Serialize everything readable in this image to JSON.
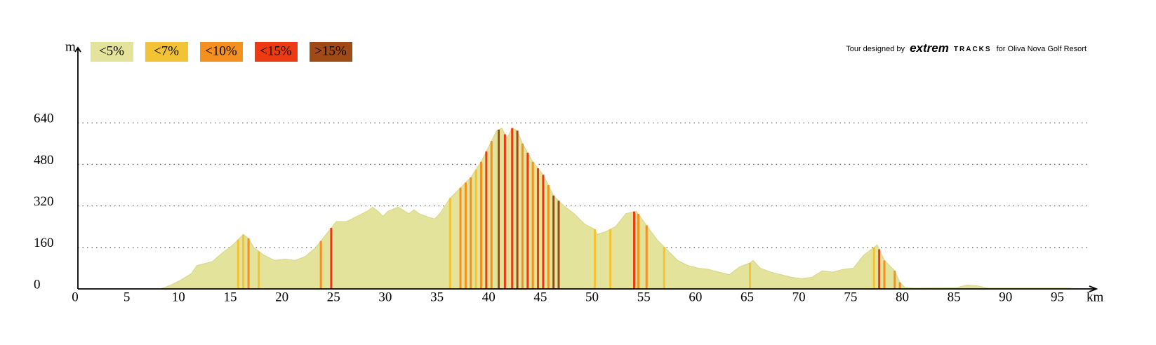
{
  "chart_data": {
    "type": "area",
    "x_label": "km",
    "y_label": "m",
    "credit": {
      "prefix": "Tour designed by",
      "brand": "extrem",
      "brand_suffix": "TRACKS",
      "suffix": "for Oliva Nova Golf Resort"
    },
    "color": "#e3e39b",
    "x": [
      0,
      5,
      8,
      9,
      10,
      11,
      11.5,
      13,
      14,
      15,
      16,
      16.5,
      17,
      18,
      19,
      20,
      21,
      22,
      23,
      24,
      25,
      26,
      27,
      28,
      28.5,
      29,
      29.5,
      30,
      31,
      32,
      32.5,
      33,
      34,
      34.5,
      35,
      36,
      37,
      38,
      39,
      40,
      40.5,
      41,
      41.5,
      42,
      42.5,
      43,
      44,
      45,
      46,
      47,
      48,
      49,
      50,
      50.2,
      51,
      52,
      53,
      54,
      55,
      56,
      57,
      58,
      59,
      60,
      61,
      62,
      63,
      64,
      65,
      65.3,
      66,
      67,
      68,
      69,
      70,
      71,
      72,
      73,
      74,
      75,
      76,
      77,
      77.3,
      78,
      79,
      79.5,
      80,
      81,
      85,
      86,
      87,
      88,
      96
    ],
    "values": [
      0,
      0,
      0,
      15,
      35,
      60,
      90,
      105,
      140,
      170,
      210,
      195,
      160,
      130,
      110,
      115,
      110,
      125,
      160,
      210,
      260,
      260,
      280,
      300,
      315,
      300,
      280,
      300,
      315,
      290,
      305,
      290,
      275,
      270,
      290,
      350,
      390,
      430,
      490,
      570,
      610,
      620,
      580,
      620,
      610,
      560,
      490,
      440,
      360,
      320,
      290,
      250,
      230,
      210,
      220,
      240,
      290,
      300,
      245,
      190,
      150,
      110,
      90,
      80,
      75,
      65,
      55,
      85,
      100,
      110,
      80,
      65,
      55,
      45,
      40,
      45,
      70,
      65,
      75,
      80,
      130,
      160,
      170,
      110,
      70,
      25,
      5,
      3,
      5,
      15,
      12,
      3,
      3
    ],
    "series": [
      {
        "name": "<5%",
        "color": "#e3e39b",
        "x": []
      },
      {
        "name": "<7%",
        "color": "#f2c335",
        "x": [
          15.5,
          16,
          17.5,
          36,
          38.5,
          50,
          51.5,
          56.7,
          65,
          77
        ]
      },
      {
        "name": "<10%",
        "color": "#f4901e",
        "x": [
          16.5,
          23.5,
          37,
          37.5,
          38,
          39,
          40,
          43,
          44,
          45.5,
          54.2,
          55,
          78,
          79,
          79.5
        ]
      },
      {
        "name": "<15%",
        "color": "#ee3a13",
        "x": [
          24.5,
          39.5,
          41.3,
          42,
          43.5,
          44.5,
          45,
          53.8,
          77.5
        ]
      },
      {
        "name": ">15%",
        "color": "#a04a18",
        "x": [
          40.7,
          42.5,
          46,
          46.5
        ]
      }
    ],
    "xlim": [
      0,
      98.5
    ],
    "ylim": [
      0,
      930
    ],
    "xticks": [
      0,
      5,
      10,
      15,
      20,
      25,
      30,
      35,
      40,
      45,
      50,
      55,
      60,
      65,
      70,
      75,
      80,
      85,
      90,
      95
    ],
    "yticks": [
      0,
      160,
      320,
      480,
      640
    ],
    "grid": true
  }
}
